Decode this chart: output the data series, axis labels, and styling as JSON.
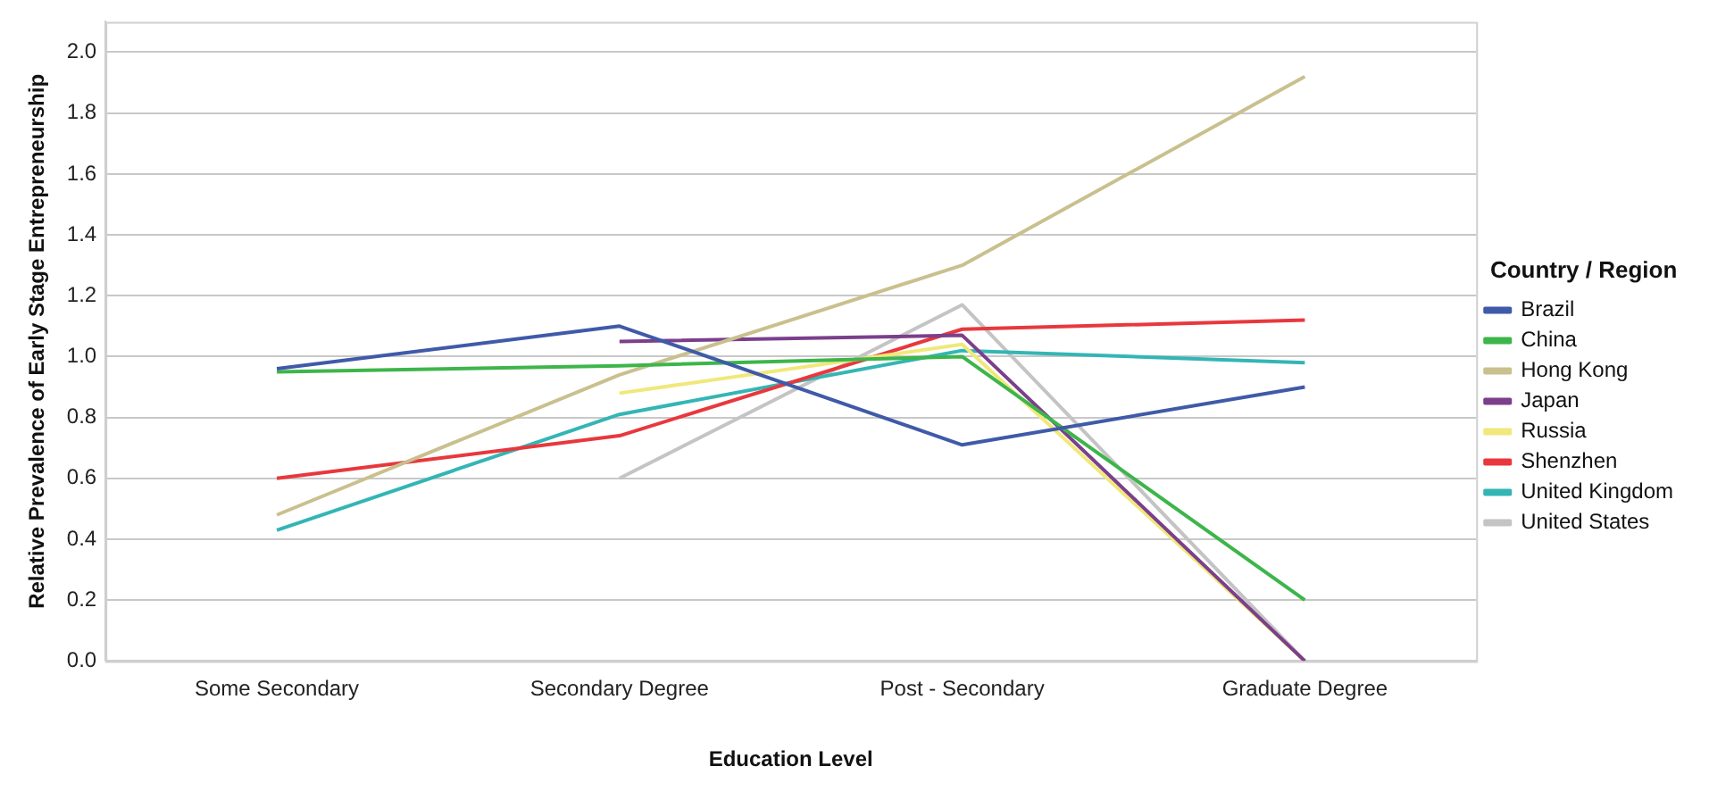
{
  "chart_data": {
    "type": "line",
    "xlabel": "Education Level",
    "ylabel": "Relative Prevalence of Early Stage Entrepreneurship",
    "legend_title": "Country / Region",
    "categories": [
      "Some Secondary",
      "Secondary Degree",
      "Post - Secondary",
      "Graduate Degree"
    ],
    "series": [
      {
        "name": "Brazil",
        "color": "#3f5aa8",
        "values": [
          0.96,
          1.1,
          0.71,
          0.9
        ]
      },
      {
        "name": "China",
        "color": "#3db54a",
        "values": [
          0.95,
          0.97,
          1.0,
          0.2
        ]
      },
      {
        "name": "Hong Kong",
        "color": "#c9c08e",
        "values": [
          0.48,
          0.94,
          1.3,
          1.92
        ]
      },
      {
        "name": "Japan",
        "color": "#7b3f8c",
        "values": [
          null,
          1.05,
          1.07,
          0.0
        ]
      },
      {
        "name": "Russia",
        "color": "#f0e87a",
        "values": [
          null,
          0.88,
          1.04,
          0.0
        ]
      },
      {
        "name": "Shenzhen",
        "color": "#e8383d",
        "values": [
          0.6,
          0.74,
          1.09,
          1.12
        ]
      },
      {
        "name": "United Kingdom",
        "color": "#34b5b5",
        "values": [
          0.43,
          0.81,
          1.02,
          0.98
        ]
      },
      {
        "name": "United States",
        "color": "#c4c4c4",
        "values": [
          null,
          0.6,
          1.17,
          0.0
        ]
      }
    ],
    "ylim": [
      0,
      2.1
    ],
    "yticks": [
      {
        "value": 0,
        "label": "0.0"
      },
      {
        "value": 0.2,
        "label": "0.2"
      },
      {
        "value": 0.4,
        "label": "0.4"
      },
      {
        "value": 0.6,
        "label": "0.6"
      },
      {
        "value": 0.8,
        "label": "0.8"
      },
      {
        "value": 1,
        "label": "1.0"
      },
      {
        "value": 1.2,
        "label": "1.2"
      },
      {
        "value": 1.4,
        "label": "1.4"
      },
      {
        "value": 1.6,
        "label": "1.6"
      },
      {
        "value": 1.8,
        "label": "1.8"
      },
      {
        "value": 2,
        "label": "2.0"
      }
    ],
    "grid": "y",
    "legend": "right",
    "marker": "none",
    "line_style": "solid"
  }
}
